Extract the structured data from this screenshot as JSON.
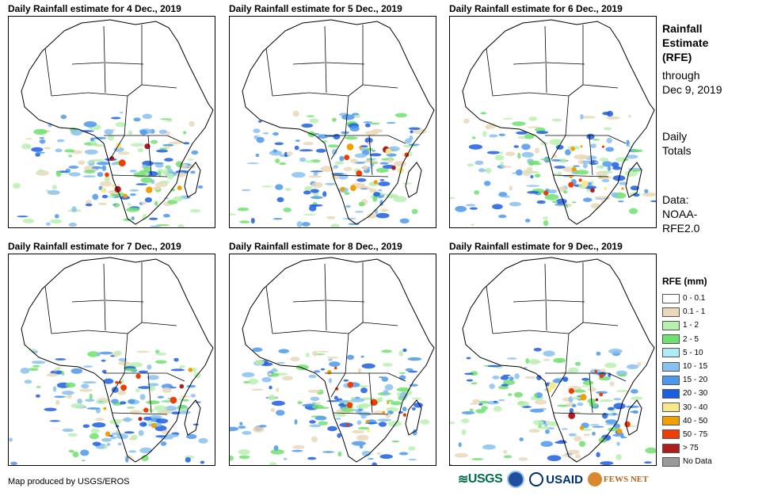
{
  "panels": [
    {
      "title": "Daily Rainfall estimate for 4 Dec., 2019"
    },
    {
      "title": "Daily Rainfall estimate for 5 Dec., 2019"
    },
    {
      "title": "Daily Rainfall estimate for 6 Dec., 2019"
    },
    {
      "title": "Daily Rainfall estimate for 7 Dec., 2019"
    },
    {
      "title": "Daily Rainfall estimate for 8 Dec., 2019"
    },
    {
      "title": "Daily Rainfall estimate for 9 Dec., 2019"
    }
  ],
  "side": {
    "title_l1": "Rainfall",
    "title_l2": "Estimate",
    "title_l3": "(RFE)",
    "through_l1": "through",
    "through_l2": "Dec 9, 2019",
    "daily_l1": "Daily",
    "daily_l2": "Totals",
    "data_l1": "Data:",
    "data_l2": "NOAA-",
    "data_l3": "RFE2.0"
  },
  "legend": {
    "title": "RFE (mm)",
    "items": [
      {
        "label": "0 - 0.1",
        "color": "#ffffff"
      },
      {
        "label": "0.1 - 1",
        "color": "#e8d8b8"
      },
      {
        "label": "1 - 2",
        "color": "#b8f0b0"
      },
      {
        "label": "2 - 5",
        "color": "#6ee06e"
      },
      {
        "label": "5 - 10",
        "color": "#b0ecf8"
      },
      {
        "label": "10 - 15",
        "color": "#88c0f0"
      },
      {
        "label": "15 - 20",
        "color": "#4c98ec"
      },
      {
        "label": "20 - 30",
        "color": "#1c5ee0"
      },
      {
        "label": "30 - 40",
        "color": "#f8e88c"
      },
      {
        "label": "40 - 50",
        "color": "#f0a000"
      },
      {
        "label": "50 - 75",
        "color": "#f03c00"
      },
      {
        "label": "> 75",
        "color": "#b01c1c"
      },
      {
        "label": "No Data",
        "color": "#9a9a9a"
      }
    ]
  },
  "credit": "Map produced by USGS/EROS",
  "logos": {
    "usgs": "USGS",
    "noaa": "NOAA",
    "usaid": "USAID",
    "fews": "FEWS NET"
  }
}
